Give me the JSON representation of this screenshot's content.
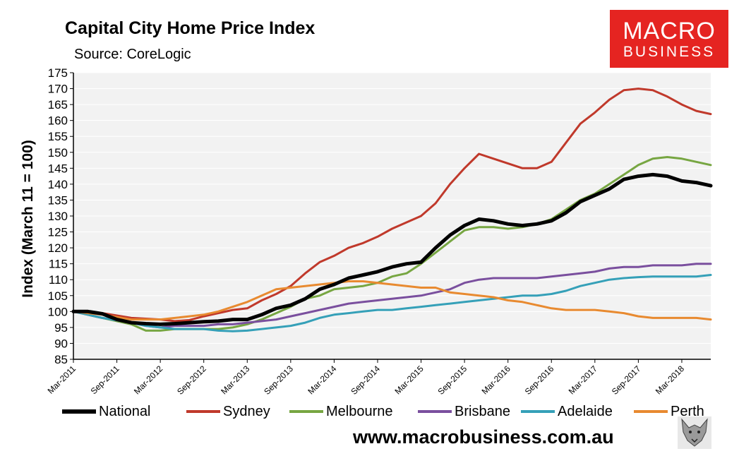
{
  "header": {
    "title": "Capital City Home Price Index",
    "subtitle": "Source: CoreLogic"
  },
  "logo": {
    "line1": "MACRO",
    "line2": "BUSINESS",
    "color": "#e52421"
  },
  "footer": {
    "website": "www.macrobusiness.com.au"
  },
  "chart_data": {
    "type": "line",
    "title": "Capital City Home Price Index",
    "ylabel": "Index (March 11 = 100)",
    "xlabel": "",
    "ylim": [
      85,
      175
    ],
    "yticks": [
      "85",
      "90",
      "95",
      "100",
      "105",
      "110",
      "115",
      "120",
      "125",
      "130",
      "135",
      "140",
      "145",
      "150",
      "155",
      "160",
      "165",
      "170",
      "175"
    ],
    "x_start": "Mar-2011",
    "months": 88,
    "xtick_labels": [
      "Mar-2011",
      "Sep-2011",
      "Mar-2012",
      "Sep-2012",
      "Mar-2013",
      "Sep-2013",
      "Mar-2014",
      "Sep-2014",
      "Mar-2015",
      "Sep-2015",
      "Mar-2016",
      "Sep-2016",
      "Mar-2017",
      "Sep-2017",
      "Mar-2018"
    ],
    "plot_background": "#f2f2f2",
    "series": [
      {
        "name": "National",
        "color": "#000000",
        "width": 5,
        "points": [
          [
            0,
            100
          ],
          [
            2,
            100
          ],
          [
            4,
            99.3
          ],
          [
            6,
            97.5
          ],
          [
            8,
            96.5
          ],
          [
            10,
            96.2
          ],
          [
            12,
            96
          ],
          [
            14,
            96.2
          ],
          [
            16,
            96.5
          ],
          [
            18,
            96.8
          ],
          [
            20,
            97
          ],
          [
            22,
            97.5
          ],
          [
            24,
            97.5
          ],
          [
            26,
            99
          ],
          [
            28,
            101
          ],
          [
            30,
            102
          ],
          [
            32,
            104
          ],
          [
            34,
            107
          ],
          [
            36,
            108.5
          ],
          [
            38,
            110.5
          ],
          [
            40,
            111.5
          ],
          [
            42,
            112.5
          ],
          [
            44,
            114
          ],
          [
            46,
            115
          ],
          [
            48,
            115.5
          ],
          [
            50,
            120
          ],
          [
            52,
            124
          ],
          [
            54,
            127
          ],
          [
            56,
            129
          ],
          [
            58,
            128.5
          ],
          [
            60,
            127.5
          ],
          [
            62,
            127
          ],
          [
            64,
            127.5
          ],
          [
            66,
            128.5
          ],
          [
            68,
            131
          ],
          [
            70,
            134.5
          ],
          [
            72,
            136.5
          ],
          [
            74,
            138.5
          ],
          [
            76,
            141.5
          ],
          [
            78,
            142.5
          ],
          [
            80,
            143
          ],
          [
            82,
            142.5
          ],
          [
            84,
            141
          ],
          [
            86,
            140.5
          ],
          [
            88,
            139.5
          ]
        ]
      },
      {
        "name": "Sydney",
        "color": "#c0392b",
        "width": 3,
        "points": [
          [
            0,
            100
          ],
          [
            4,
            99.5
          ],
          [
            8,
            98
          ],
          [
            12,
            97.5
          ],
          [
            14,
            97
          ],
          [
            16,
            97.3
          ],
          [
            18,
            98.5
          ],
          [
            20,
            99.5
          ],
          [
            22,
            100.5
          ],
          [
            24,
            101
          ],
          [
            26,
            103.5
          ],
          [
            28,
            105.5
          ],
          [
            30,
            108
          ],
          [
            32,
            112
          ],
          [
            34,
            115.5
          ],
          [
            36,
            117.5
          ],
          [
            38,
            120
          ],
          [
            40,
            121.5
          ],
          [
            42,
            123.5
          ],
          [
            44,
            126
          ],
          [
            46,
            128
          ],
          [
            48,
            130
          ],
          [
            50,
            134
          ],
          [
            52,
            140
          ],
          [
            54,
            145
          ],
          [
            56,
            149.5
          ],
          [
            58,
            148
          ],
          [
            60,
            146.5
          ],
          [
            62,
            145
          ],
          [
            64,
            145
          ],
          [
            66,
            147
          ],
          [
            68,
            153
          ],
          [
            70,
            159
          ],
          [
            72,
            162.5
          ],
          [
            74,
            166.5
          ],
          [
            76,
            169.5
          ],
          [
            78,
            170
          ],
          [
            80,
            169.5
          ],
          [
            82,
            167.5
          ],
          [
            84,
            165
          ],
          [
            86,
            163
          ],
          [
            88,
            162
          ]
        ]
      },
      {
        "name": "Melbourne",
        "color": "#77a642",
        "width": 3,
        "points": [
          [
            0,
            100
          ],
          [
            4,
            98
          ],
          [
            8,
            96
          ],
          [
            10,
            94
          ],
          [
            12,
            94
          ],
          [
            14,
            94.5
          ],
          [
            16,
            94.5
          ],
          [
            18,
            94.5
          ],
          [
            20,
            94.5
          ],
          [
            22,
            95
          ],
          [
            24,
            96
          ],
          [
            26,
            97.5
          ],
          [
            28,
            99.5
          ],
          [
            30,
            101.5
          ],
          [
            32,
            104
          ],
          [
            34,
            105
          ],
          [
            36,
            107
          ],
          [
            38,
            107.5
          ],
          [
            40,
            108
          ],
          [
            42,
            109
          ],
          [
            44,
            111
          ],
          [
            46,
            112
          ],
          [
            48,
            115
          ],
          [
            50,
            118.5
          ],
          [
            52,
            122
          ],
          [
            54,
            125.5
          ],
          [
            56,
            126.5
          ],
          [
            58,
            126.5
          ],
          [
            60,
            126
          ],
          [
            62,
            126.5
          ],
          [
            64,
            127.5
          ],
          [
            66,
            129
          ],
          [
            68,
            132
          ],
          [
            70,
            135
          ],
          [
            72,
            137
          ],
          [
            74,
            140
          ],
          [
            76,
            143
          ],
          [
            78,
            146
          ],
          [
            80,
            148
          ],
          [
            82,
            148.5
          ],
          [
            84,
            148
          ],
          [
            86,
            147
          ],
          [
            88,
            146
          ]
        ]
      },
      {
        "name": "Brisbane",
        "color": "#7a4f9e",
        "width": 3,
        "points": [
          [
            0,
            100
          ],
          [
            4,
            98
          ],
          [
            8,
            96.5
          ],
          [
            10,
            95.5
          ],
          [
            12,
            95
          ],
          [
            14,
            95.5
          ],
          [
            16,
            95.5
          ],
          [
            18,
            95.5
          ],
          [
            20,
            96
          ],
          [
            22,
            96
          ],
          [
            24,
            96.5
          ],
          [
            26,
            97
          ],
          [
            28,
            97.5
          ],
          [
            30,
            98.5
          ],
          [
            32,
            99.5
          ],
          [
            34,
            100.5
          ],
          [
            36,
            101.5
          ],
          [
            38,
            102.5
          ],
          [
            40,
            103
          ],
          [
            42,
            103.5
          ],
          [
            44,
            104
          ],
          [
            46,
            104.5
          ],
          [
            48,
            105
          ],
          [
            50,
            106
          ],
          [
            52,
            107
          ],
          [
            54,
            109
          ],
          [
            56,
            110
          ],
          [
            58,
            110.5
          ],
          [
            60,
            110.5
          ],
          [
            62,
            110.5
          ],
          [
            64,
            110.5
          ],
          [
            66,
            111
          ],
          [
            68,
            111.5
          ],
          [
            70,
            112
          ],
          [
            72,
            112.5
          ],
          [
            74,
            113.5
          ],
          [
            76,
            114
          ],
          [
            78,
            114
          ],
          [
            80,
            114.5
          ],
          [
            82,
            114.5
          ],
          [
            84,
            114.5
          ],
          [
            86,
            115
          ],
          [
            88,
            115
          ]
        ]
      },
      {
        "name": "Adelaide",
        "color": "#35a0b8",
        "width": 3,
        "points": [
          [
            0,
            100
          ],
          [
            4,
            98
          ],
          [
            8,
            96.5
          ],
          [
            10,
            95.5
          ],
          [
            12,
            95
          ],
          [
            14,
            94.5
          ],
          [
            16,
            94.5
          ],
          [
            18,
            94.5
          ],
          [
            20,
            94
          ],
          [
            22,
            93.8
          ],
          [
            24,
            94
          ],
          [
            26,
            94.5
          ],
          [
            28,
            95
          ],
          [
            30,
            95.5
          ],
          [
            32,
            96.5
          ],
          [
            34,
            98
          ],
          [
            36,
            99
          ],
          [
            38,
            99.5
          ],
          [
            40,
            100
          ],
          [
            42,
            100.5
          ],
          [
            44,
            100.5
          ],
          [
            46,
            101
          ],
          [
            48,
            101.5
          ],
          [
            50,
            102
          ],
          [
            52,
            102.5
          ],
          [
            54,
            103
          ],
          [
            56,
            103.5
          ],
          [
            58,
            104
          ],
          [
            60,
            104.5
          ],
          [
            62,
            105
          ],
          [
            64,
            105
          ],
          [
            66,
            105.5
          ],
          [
            68,
            106.5
          ],
          [
            70,
            108
          ],
          [
            72,
            109
          ],
          [
            74,
            110
          ],
          [
            76,
            110.5
          ],
          [
            78,
            110.8
          ],
          [
            80,
            111
          ],
          [
            82,
            111
          ],
          [
            84,
            111
          ],
          [
            86,
            111
          ],
          [
            88,
            111.5
          ]
        ]
      },
      {
        "name": "Perth",
        "color": "#e88a30",
        "width": 3,
        "points": [
          [
            0,
            100
          ],
          [
            4,
            99
          ],
          [
            8,
            97.5
          ],
          [
            12,
            97.5
          ],
          [
            14,
            98
          ],
          [
            16,
            98.5
          ],
          [
            18,
            99
          ],
          [
            20,
            100
          ],
          [
            22,
            101.5
          ],
          [
            24,
            103
          ],
          [
            26,
            105
          ],
          [
            28,
            107
          ],
          [
            30,
            107.5
          ],
          [
            32,
            108
          ],
          [
            34,
            108.5
          ],
          [
            36,
            109
          ],
          [
            38,
            109.5
          ],
          [
            40,
            109.5
          ],
          [
            42,
            109
          ],
          [
            44,
            108.5
          ],
          [
            46,
            108
          ],
          [
            48,
            107.5
          ],
          [
            50,
            107.5
          ],
          [
            52,
            106
          ],
          [
            54,
            105.5
          ],
          [
            56,
            105
          ],
          [
            58,
            104.5
          ],
          [
            60,
            103.5
          ],
          [
            62,
            103
          ],
          [
            64,
            102
          ],
          [
            66,
            101
          ],
          [
            68,
            100.5
          ],
          [
            70,
            100.5
          ],
          [
            72,
            100.5
          ],
          [
            74,
            100
          ],
          [
            76,
            99.5
          ],
          [
            78,
            98.5
          ],
          [
            80,
            98
          ],
          [
            82,
            98
          ],
          [
            84,
            98
          ],
          [
            86,
            98
          ],
          [
            88,
            97.5
          ]
        ]
      }
    ]
  }
}
